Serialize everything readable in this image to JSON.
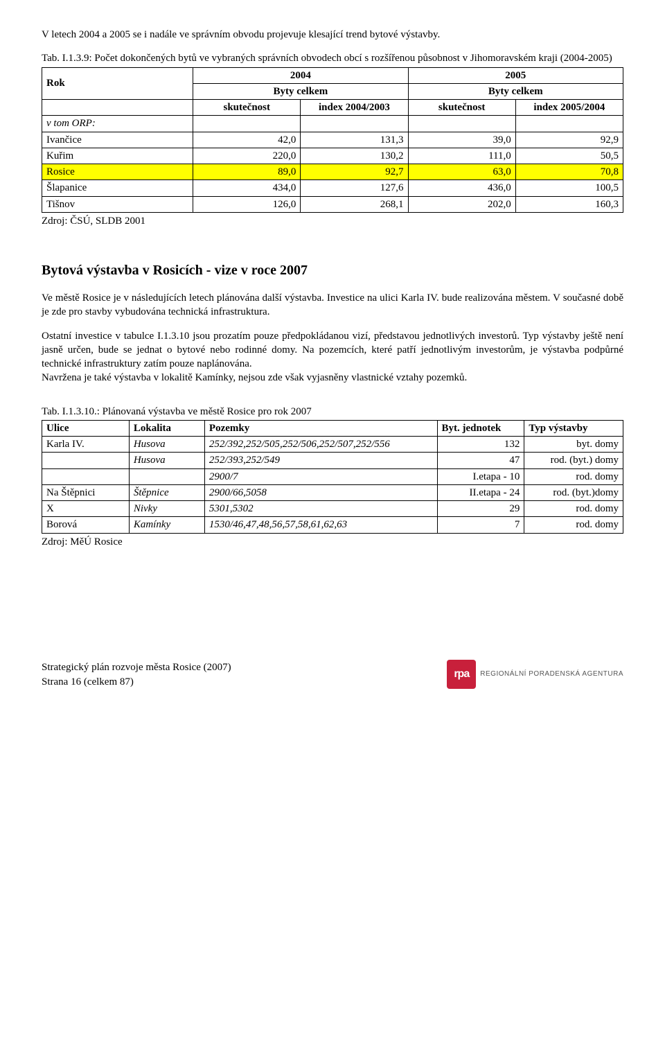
{
  "intro": "V letech 2004 a 2005 se i nadále ve správním obvodu projevuje klesající trend bytové výstavby.",
  "tab9": {
    "caption": "Tab. I.1.3.9: Počet dokončených bytů ve vybraných správních obvodech obcí s rozšířenou působnost v Jihomoravském kraji (2004-2005)",
    "headers": {
      "rok": "Rok",
      "y2004": "2004",
      "y2005": "2005",
      "byty": "Byty celkem",
      "skut": "skutečnost",
      "idx0403": "index 2004/2003",
      "idx0504": "index 2005/2004"
    },
    "orp_label": "v tom ORP:",
    "rows": [
      {
        "name": "Ivančice",
        "a": "42,0",
        "b": "131,3",
        "c": "39,0",
        "d": "92,9",
        "hl": false
      },
      {
        "name": "Kuřim",
        "a": "220,0",
        "b": "130,2",
        "c": "111,0",
        "d": "50,5",
        "hl": false
      },
      {
        "name": "Rosice",
        "a": "89,0",
        "b": "92,7",
        "c": "63,0",
        "d": "70,8",
        "hl": true
      },
      {
        "name": "Šlapanice",
        "a": "434,0",
        "b": "127,6",
        "c": "436,0",
        "d": "100,5",
        "hl": false
      },
      {
        "name": "Tišnov",
        "a": "126,0",
        "b": "268,1",
        "c": "202,0",
        "d": "160,3",
        "hl": false
      }
    ],
    "source": "Zdroj: ČSÚ, SLDB 2001",
    "col_widths": [
      "26%",
      "18.5%",
      "18.5%",
      "18.5%",
      "18.5%"
    ],
    "highlight_color": "#ffff00"
  },
  "section_title": "Bytová výstavba v Rosicích - vize v roce 2007",
  "para1": "Ve městě Rosice je v následujících letech plánována další výstavba. Investice na ulici Karla IV. bude realizována městem. V současné době je zde pro stavby vybudována technická infrastruktura.",
  "para2": "Ostatní investice v tabulce I.1.3.10 jsou prozatím pouze předpokládanou vizí, představou jednotlivých investorů. Typ výstavby ještě není jasně určen, bude se jednat o bytové nebo rodinné domy. Na pozemcích, které patří jednotlivým investorům, je výstavba podpůrné technické infrastruktury zatím pouze naplánována.",
  "para3": "Navržena je také výstavba v lokalitě Kamínky, nejsou zde však vyjasněny vlastnické vztahy pozemků.",
  "tab10": {
    "caption": "Tab. I.1.3.10.: Plánovaná výstavba ve městě Rosice pro rok 2007",
    "headers": {
      "ulice": "Ulice",
      "lokalita": "Lokalita",
      "pozemky": "Pozemky",
      "byt": "Byt. jednotek",
      "typ": "Typ výstavby"
    },
    "rows": [
      {
        "ulice": "Karla IV.",
        "lokalita": "Husova",
        "pozemky": "252/392,252/505,252/506,252/507,252/556",
        "byt": "132",
        "typ": "byt. domy"
      },
      {
        "ulice": "",
        "lokalita": "Husova",
        "pozemky": " 252/393,252/549",
        "byt": "47",
        "typ": "rod. (byt.) domy"
      },
      {
        "ulice": "",
        "lokalita": "",
        "pozemky": "2900/7",
        "byt": "I.etapa - 10",
        "typ": "rod. domy"
      },
      {
        "ulice": "Na Štěpnici",
        "lokalita": "Štěpnice",
        "pozemky": "2900/66,5058",
        "byt": "II.etapa - 24",
        "typ": "rod. (byt.)domy"
      },
      {
        "ulice": "X",
        "lokalita": "Nivky",
        "pozemky": "5301,5302",
        "byt": "29",
        "typ": "rod. domy"
      },
      {
        "ulice": "Borová",
        "lokalita": "Kamínky",
        "pozemky": "1530/46,47,48,56,57,58,61,62,63",
        "byt": "7",
        "typ": "rod. domy"
      }
    ],
    "source": "Zdroj: MěÚ Rosice",
    "col_widths": [
      "15%",
      "13%",
      "40%",
      "15%",
      "17%"
    ]
  },
  "footer": {
    "line1": "Strategický plán rozvoje města Rosice (2007)",
    "line2": "Strana 16 (celkem 87)",
    "logo_mark": "rpa",
    "logo_text": "REGIONÁLNÍ PORADENSKÁ AGENTURA",
    "logo_bg": "#c8203b"
  }
}
